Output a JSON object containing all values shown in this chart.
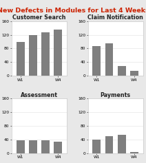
{
  "title": "New Defects in Modules for Last 4 Weeks",
  "title_color": "#cc2200",
  "title_fontsize": 6.8,
  "panels": [
    {
      "label": "Customer Search",
      "values": [
        100,
        120,
        128,
        135
      ],
      "ylim": [
        0,
        160
      ],
      "yticks": [
        0,
        40,
        80,
        120,
        160
      ]
    },
    {
      "label": "Claim Notification",
      "values": [
        88,
        95,
        28,
        14
      ],
      "ylim": [
        0,
        160
      ],
      "yticks": [
        0,
        40,
        80,
        120,
        160
      ]
    },
    {
      "label": "Assessment",
      "values": [
        38,
        38,
        38,
        34
      ],
      "ylim": [
        0,
        160
      ],
      "yticks": [
        0,
        40,
        80,
        120,
        160
      ]
    },
    {
      "label": "Payments",
      "values": [
        40,
        50,
        55,
        4
      ],
      "ylim": [
        0,
        160
      ],
      "yticks": [
        0,
        40,
        80,
        120,
        160
      ]
    }
  ],
  "bar_color": "#7f7f7f",
  "bar_width": 0.65,
  "outer_background": "#e8e8e8",
  "panel_background": "#ffffff",
  "panel_border_color": "#cccccc",
  "label_fontsize": 5.8,
  "tick_fontsize": 4.2,
  "title_bold": false,
  "top_bg": "#f5f5f5"
}
